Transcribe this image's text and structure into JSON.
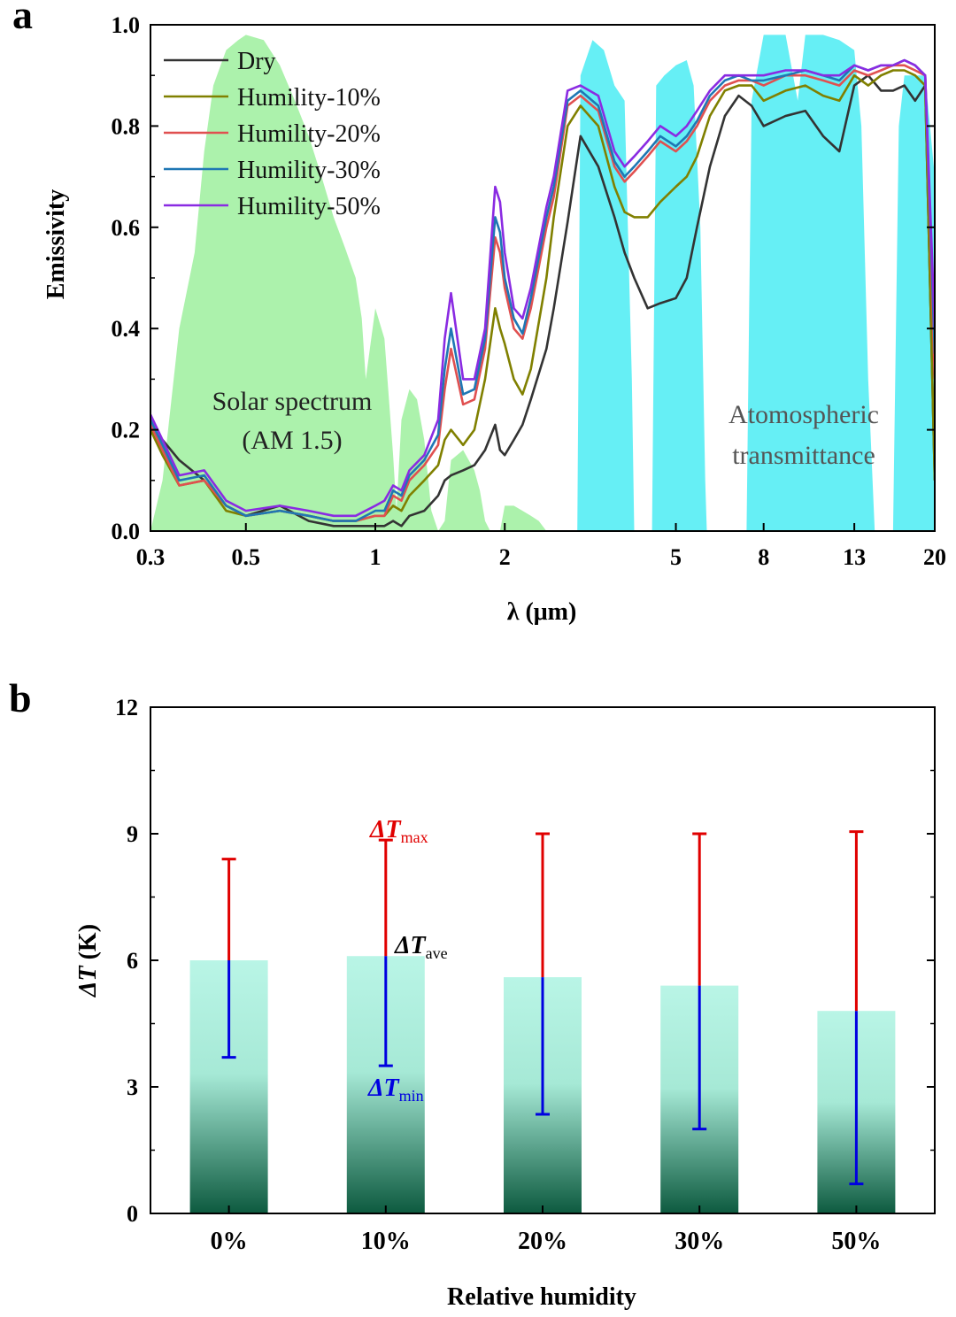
{
  "chart_data": [
    {
      "panel": "a",
      "type": "line",
      "xscale": "log",
      "xlim": [
        0.3,
        20
      ],
      "ylim": [
        0.0,
        1.0
      ],
      "xlabel": "λ (μm)",
      "ylabel": "Emissivity",
      "xticks": [
        "0.3",
        "0.5",
        "1",
        "2",
        "5",
        "8",
        "13",
        "20"
      ],
      "xtick_values": [
        0.3,
        0.5,
        1,
        2,
        5,
        8,
        13,
        20
      ],
      "yticks": [
        "0.0",
        "0.2",
        "0.4",
        "0.6",
        "0.8",
        "1.0"
      ],
      "ytick_values": [
        0.0,
        0.2,
        0.4,
        0.6,
        0.8,
        1.0
      ],
      "legend_position": "top-left",
      "annotations": {
        "solar_line1": "Solar spectrum",
        "solar_line2": "(AM 1.5)",
        "atm_line1": "Atomospheric",
        "atm_line2": "transmittance"
      },
      "solar_spectrum": {
        "color": "#90EE90",
        "x": [
          0.3,
          0.32,
          0.35,
          0.38,
          0.4,
          0.42,
          0.45,
          0.48,
          0.5,
          0.55,
          0.6,
          0.65,
          0.7,
          0.75,
          0.8,
          0.85,
          0.9,
          0.93,
          0.95,
          1.0,
          1.05,
          1.1,
          1.12,
          1.15,
          1.2,
          1.25,
          1.3,
          1.35,
          1.4,
          1.45,
          1.5,
          1.6,
          1.7,
          1.75,
          1.8,
          1.85,
          1.9,
          1.95,
          2.0,
          2.1,
          2.2,
          2.3,
          2.4,
          2.5
        ],
        "y": [
          0.0,
          0.1,
          0.4,
          0.55,
          0.75,
          0.88,
          0.95,
          0.97,
          0.98,
          0.97,
          0.92,
          0.85,
          0.78,
          0.7,
          0.62,
          0.56,
          0.5,
          0.42,
          0.3,
          0.44,
          0.38,
          0.15,
          0.04,
          0.22,
          0.28,
          0.26,
          0.18,
          0.04,
          0.0,
          0.02,
          0.14,
          0.16,
          0.12,
          0.08,
          0.02,
          0.0,
          0.0,
          0.0,
          0.05,
          0.05,
          0.04,
          0.03,
          0.02,
          0.0
        ]
      },
      "atm_transmittance": {
        "color": "#00E5EE",
        "x": [
          2.9,
          2.95,
          3.0,
          3.2,
          3.4,
          3.6,
          3.8,
          3.95,
          4.0,
          4.2,
          4.4,
          4.5,
          4.7,
          5.0,
          5.3,
          5.5,
          5.7,
          5.85,
          5.9,
          6.5,
          7.0,
          7.3,
          7.5,
          8.0,
          9.0,
          9.6,
          10.0,
          11.0,
          12.0,
          13.0,
          13.5,
          14.0,
          14.5,
          15.0,
          16.0,
          16.5,
          17.0,
          18.0,
          19.0,
          20.0
        ],
        "y": [
          0.0,
          0.0,
          0.9,
          0.97,
          0.95,
          0.88,
          0.85,
          0.3,
          0.0,
          0.0,
          0.0,
          0.88,
          0.9,
          0.92,
          0.93,
          0.88,
          0.6,
          0.1,
          0.0,
          0.0,
          0.0,
          0.0,
          0.85,
          0.98,
          0.98,
          0.85,
          0.98,
          0.98,
          0.97,
          0.95,
          0.8,
          0.3,
          0.0,
          0.0,
          0.0,
          0.8,
          0.9,
          0.9,
          0.9,
          0.7
        ]
      },
      "x": [
        0.3,
        0.32,
        0.35,
        0.4,
        0.45,
        0.5,
        0.6,
        0.7,
        0.8,
        0.9,
        1.0,
        1.05,
        1.1,
        1.15,
        1.2,
        1.3,
        1.4,
        1.45,
        1.5,
        1.6,
        1.7,
        1.8,
        1.9,
        1.95,
        2.0,
        2.1,
        2.2,
        2.3,
        2.5,
        2.6,
        2.8,
        3.0,
        3.3,
        3.6,
        3.8,
        4.0,
        4.3,
        4.6,
        5.0,
        5.3,
        5.6,
        6.0,
        6.5,
        7.0,
        7.5,
        8.0,
        9.0,
        10.0,
        11.0,
        12.0,
        13.0,
        14.0,
        15.0,
        16.0,
        17.0,
        18.0,
        19.0,
        20.0
      ],
      "series": [
        {
          "name": "Dry",
          "color": "#333333",
          "values": [
            0.2,
            0.18,
            0.14,
            0.1,
            0.05,
            0.03,
            0.05,
            0.02,
            0.01,
            0.01,
            0.01,
            0.01,
            0.02,
            0.01,
            0.03,
            0.04,
            0.07,
            0.1,
            0.11,
            0.12,
            0.13,
            0.16,
            0.21,
            0.16,
            0.15,
            0.18,
            0.21,
            0.26,
            0.36,
            0.44,
            0.61,
            0.78,
            0.72,
            0.62,
            0.55,
            0.5,
            0.44,
            0.45,
            0.46,
            0.5,
            0.6,
            0.72,
            0.82,
            0.86,
            0.84,
            0.8,
            0.82,
            0.83,
            0.78,
            0.75,
            0.88,
            0.9,
            0.87,
            0.87,
            0.88,
            0.85,
            0.88,
            0.1
          ]
        },
        {
          "name": "Humility-10%",
          "color": "#808000",
          "values": [
            0.2,
            0.15,
            0.09,
            0.1,
            0.04,
            0.03,
            0.04,
            0.03,
            0.02,
            0.02,
            0.03,
            0.03,
            0.05,
            0.04,
            0.07,
            0.1,
            0.13,
            0.18,
            0.2,
            0.17,
            0.2,
            0.3,
            0.44,
            0.4,
            0.37,
            0.3,
            0.27,
            0.32,
            0.5,
            0.62,
            0.8,
            0.84,
            0.8,
            0.68,
            0.63,
            0.62,
            0.62,
            0.65,
            0.68,
            0.7,
            0.74,
            0.82,
            0.87,
            0.88,
            0.88,
            0.85,
            0.87,
            0.88,
            0.86,
            0.85,
            0.9,
            0.88,
            0.9,
            0.91,
            0.91,
            0.9,
            0.88,
            0.1
          ]
        },
        {
          "name": "Humility-20%",
          "color": "#E05050",
          "values": [
            0.21,
            0.16,
            0.09,
            0.1,
            0.05,
            0.03,
            0.04,
            0.03,
            0.02,
            0.02,
            0.03,
            0.03,
            0.07,
            0.06,
            0.1,
            0.13,
            0.17,
            0.28,
            0.36,
            0.25,
            0.26,
            0.36,
            0.58,
            0.55,
            0.48,
            0.4,
            0.38,
            0.44,
            0.6,
            0.66,
            0.84,
            0.86,
            0.83,
            0.72,
            0.69,
            0.71,
            0.74,
            0.77,
            0.75,
            0.77,
            0.8,
            0.85,
            0.88,
            0.89,
            0.89,
            0.88,
            0.9,
            0.9,
            0.89,
            0.88,
            0.91,
            0.9,
            0.91,
            0.92,
            0.92,
            0.91,
            0.9,
            0.3
          ]
        },
        {
          "name": "Humility-30%",
          "color": "#1F77B4",
          "values": [
            0.22,
            0.17,
            0.1,
            0.11,
            0.05,
            0.03,
            0.04,
            0.03,
            0.02,
            0.02,
            0.04,
            0.04,
            0.08,
            0.07,
            0.11,
            0.14,
            0.19,
            0.32,
            0.4,
            0.27,
            0.28,
            0.38,
            0.62,
            0.59,
            0.5,
            0.42,
            0.39,
            0.46,
            0.62,
            0.68,
            0.85,
            0.87,
            0.84,
            0.73,
            0.7,
            0.72,
            0.75,
            0.78,
            0.76,
            0.78,
            0.81,
            0.86,
            0.89,
            0.9,
            0.89,
            0.89,
            0.9,
            0.91,
            0.9,
            0.89,
            0.92,
            0.91,
            0.92,
            0.92,
            0.93,
            0.92,
            0.9,
            0.35
          ]
        },
        {
          "name": "Humility-50%",
          "color": "#8A2BE2",
          "values": [
            0.23,
            0.18,
            0.11,
            0.12,
            0.06,
            0.04,
            0.05,
            0.04,
            0.03,
            0.03,
            0.05,
            0.06,
            0.09,
            0.08,
            0.12,
            0.15,
            0.22,
            0.38,
            0.47,
            0.3,
            0.3,
            0.4,
            0.68,
            0.65,
            0.55,
            0.44,
            0.42,
            0.48,
            0.64,
            0.7,
            0.87,
            0.88,
            0.86,
            0.75,
            0.72,
            0.74,
            0.77,
            0.8,
            0.78,
            0.8,
            0.83,
            0.87,
            0.9,
            0.9,
            0.9,
            0.9,
            0.91,
            0.91,
            0.9,
            0.9,
            0.92,
            0.91,
            0.92,
            0.92,
            0.93,
            0.92,
            0.9,
            0.4
          ]
        }
      ]
    },
    {
      "panel": "b",
      "type": "bar",
      "xlabel": "Relative humidity",
      "ylabel_main": "ΔT",
      "ylabel_unit": " (K)",
      "ylim": [
        0,
        12
      ],
      "yticks": [
        "0",
        "3",
        "6",
        "9",
        "12"
      ],
      "ytick_values": [
        0,
        3,
        6,
        9,
        12
      ],
      "categories": [
        "0%",
        "10%",
        "20%",
        "30%",
        "50%"
      ],
      "series": [
        {
          "name": "ΔT ave",
          "values": [
            6.0,
            6.1,
            5.6,
            5.4,
            4.8
          ]
        },
        {
          "name": "ΔT max",
          "color": "#E00000",
          "values": [
            8.4,
            8.85,
            9.0,
            9.0,
            9.05
          ]
        },
        {
          "name": "ΔT min",
          "color": "#0000E0",
          "values": [
            3.7,
            3.5,
            2.35,
            2.0,
            0.7
          ]
        }
      ],
      "bar_gradient": {
        "top": "#B9F5E6",
        "bottom": "#0D5A3F"
      },
      "annotations": {
        "max_label": "ΔT",
        "max_sub": "max",
        "max_color": "#E00000",
        "ave_label": "ΔT",
        "ave_sub": "ave",
        "min_label": "ΔT",
        "min_sub": "min",
        "min_color": "#0000E0"
      }
    }
  ],
  "panel_a_letter": "a",
  "panel_b_letter": "b"
}
